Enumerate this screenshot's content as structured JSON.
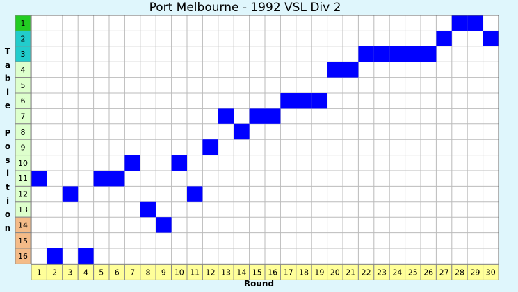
{
  "chart_data": {
    "type": "table",
    "title": "Port Melbourne - 1992 VSL Div 2",
    "xlabel": "Round",
    "ylabel": "Table Position",
    "x": [
      1,
      2,
      3,
      4,
      5,
      6,
      7,
      8,
      9,
      10,
      11,
      12,
      13,
      14,
      15,
      16,
      17,
      18,
      19,
      20,
      21,
      22,
      23,
      24,
      25,
      26,
      27,
      28,
      29,
      30
    ],
    "positions": [
      11,
      16,
      12,
      16,
      11,
      11,
      10,
      13,
      14,
      10,
      12,
      9,
      7,
      8,
      7,
      7,
      6,
      6,
      6,
      4,
      4,
      3,
      3,
      3,
      3,
      3,
      2,
      1,
      1,
      2
    ],
    "row_labels": [
      "1",
      "2",
      "3",
      "4",
      "5",
      "6",
      "7",
      "8",
      "9",
      "10",
      "11",
      "12",
      "13",
      "14",
      "15",
      "16"
    ],
    "row_colors": [
      "#22cc22",
      "#22cccc",
      "#22cccc",
      "#ddffcc",
      "#ddffcc",
      "#ddffcc",
      "#ddffcc",
      "#ddffcc",
      "#ddffcc",
      "#ddffcc",
      "#ddffcc",
      "#ddffcc",
      "#ddffcc",
      "#f4bb88",
      "#f4bb88",
      "#f4bb88"
    ],
    "tick_bg_color": "#ffff99",
    "cell_color": "#0000ff",
    "grid": true,
    "ylim": [
      1,
      16
    ],
    "xlim": [
      1,
      30
    ]
  }
}
